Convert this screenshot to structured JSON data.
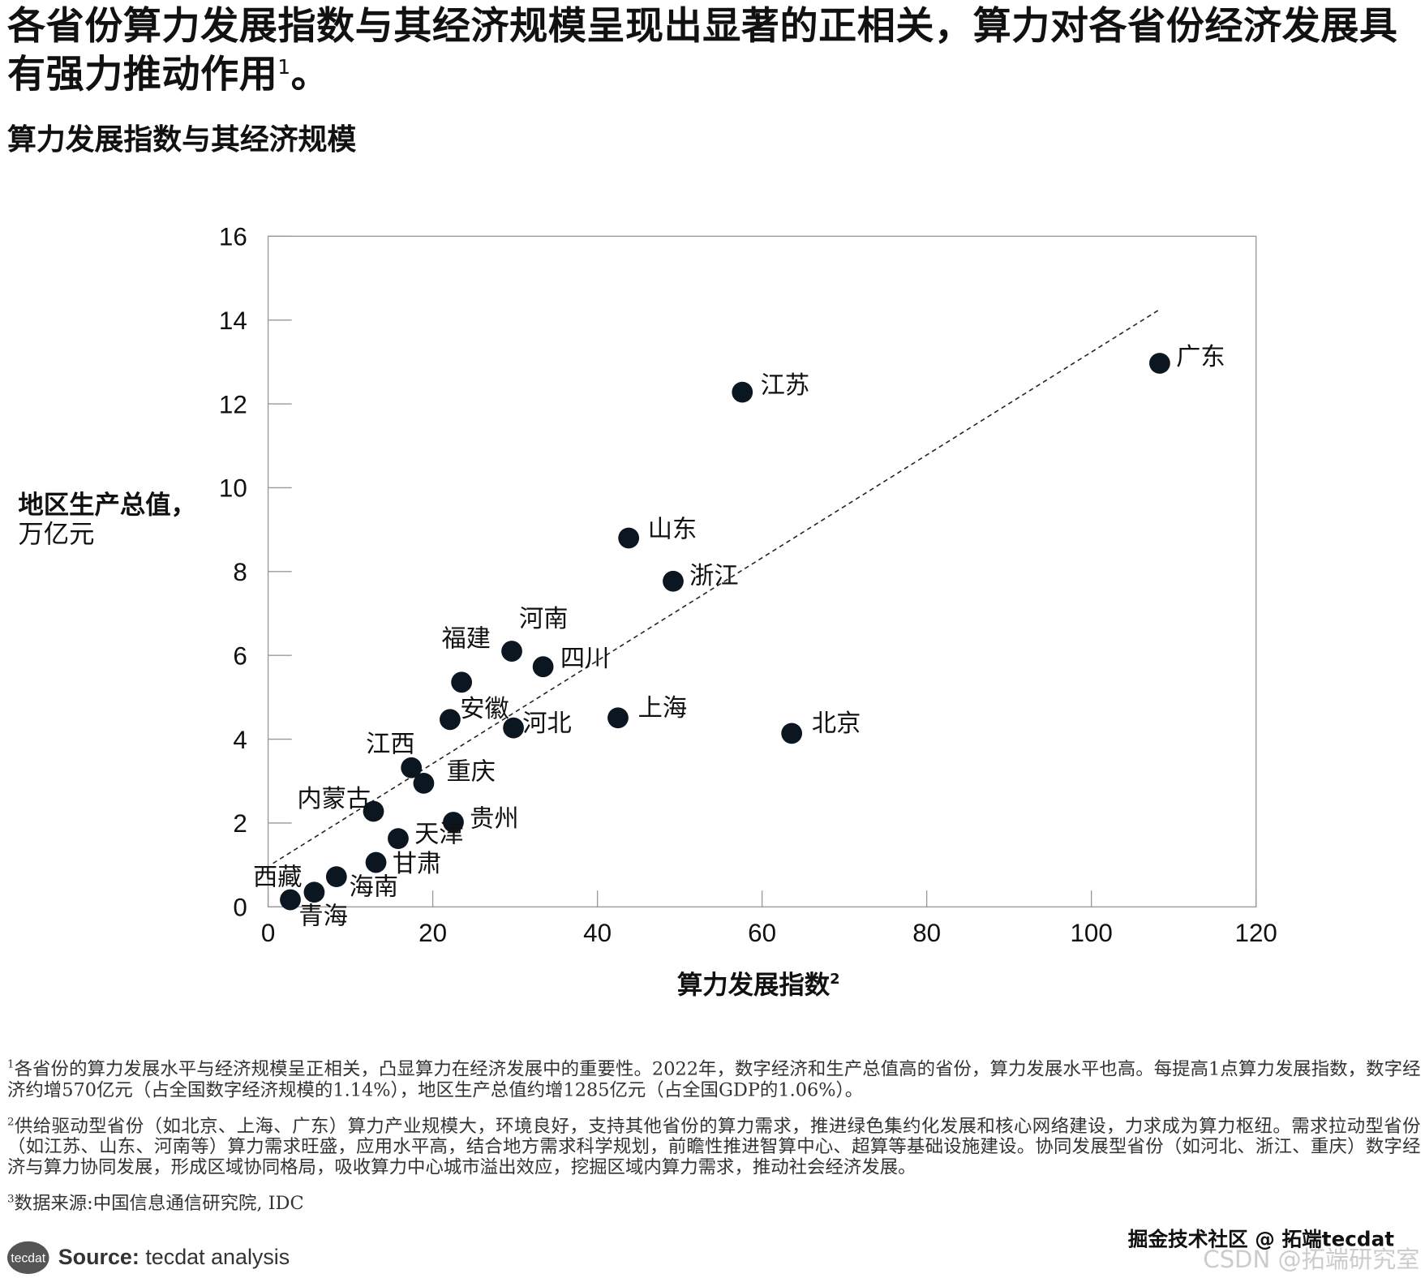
{
  "title": "各省份算力发展指数与其经济规模呈现出显著的正相关，算力对各省份经济发展具有强力推动作用",
  "title_sup": "1",
  "title_end": "。",
  "subtitle": "算力发展指数与其经济规模",
  "chart_data": {
    "type": "scatter",
    "xlabel": "算力发展指数",
    "xlabel_sup": "2",
    "ylabel_line1": "地区生产总值，",
    "ylabel_line2": "万亿元",
    "xlim": [
      0,
      120
    ],
    "ylim": [
      0,
      16
    ],
    "xticks": [
      0,
      20,
      40,
      60,
      80,
      100,
      120
    ],
    "yticks": [
      0,
      2,
      4,
      6,
      8,
      10,
      12,
      14,
      16
    ],
    "grid": false,
    "point_color": "#0b1620",
    "trendline": {
      "style": "dashed",
      "x": [
        0.6,
        108.1
      ],
      "y": [
        1.04,
        14.23
      ]
    },
    "points": [
      {
        "label": "广东",
        "x": 108.3,
        "y": 12.97
      },
      {
        "label": "江苏",
        "x": 57.6,
        "y": 12.28
      },
      {
        "label": "山东",
        "x": 43.8,
        "y": 8.8
      },
      {
        "label": "浙江",
        "x": 49.2,
        "y": 7.77
      },
      {
        "label": "河南",
        "x": 29.6,
        "y": 6.1
      },
      {
        "label": "四川",
        "x": 33.4,
        "y": 5.73
      },
      {
        "label": "福建",
        "x": 23.5,
        "y": 5.36
      },
      {
        "label": "安徽",
        "x": 22.1,
        "y": 4.47
      },
      {
        "label": "河北",
        "x": 29.8,
        "y": 4.27
      },
      {
        "label": "上海",
        "x": 42.5,
        "y": 4.51
      },
      {
        "label": "北京",
        "x": 63.6,
        "y": 4.14
      },
      {
        "label": "江西",
        "x": 17.4,
        "y": 3.32
      },
      {
        "label": "重庆",
        "x": 18.9,
        "y": 2.95
      },
      {
        "label": "内蒙古",
        "x": 12.8,
        "y": 2.28
      },
      {
        "label": "贵州",
        "x": 22.5,
        "y": 2.02
      },
      {
        "label": "天津",
        "x": 15.8,
        "y": 1.63
      },
      {
        "label": "甘肃",
        "x": 13.1,
        "y": 1.06
      },
      {
        "label": "海南",
        "x": 8.3,
        "y": 0.72
      },
      {
        "label": "青海",
        "x": 5.6,
        "y": 0.35
      },
      {
        "label": "西藏",
        "x": 2.7,
        "y": 0.17
      }
    ]
  },
  "footnotes": {
    "n1_sup": "1",
    "n1": "各省份的算力发展水平与经济规模呈正相关，凸显算力在经济发展中的重要性。2022年，数字经济和生产总值高的省份，算力发展水平也高。每提高1点算力发展指数，数字经济约增570亿元（占全国数字经济规模的1.14%），地区生产总值约增1285亿元（占全国GDP的1.06%）。",
    "n2_sup": "2",
    "n2": "供给驱动型省份（如北京、上海、广东）算力产业规模大，环境良好，支持其他省份的算力需求，推进绿色集约化发展和核心网络建设，力求成为算力枢纽。需求拉动型省份（如江苏、山东、河南等）算力需求旺盛，应用水平高，结合地方需求科学规划，前瞻性推进智算中心、超算等基础设施建设。协同发展型省份（如河北、浙江、重庆）数字经济与算力协同发展，形成区域协同格局，吸收算力中心城市溢出效应，挖掘区域内算力需求，推动社会经济发展。",
    "n3_sup": "3",
    "n3": "数据来源:中国信息通信研究院, IDC"
  },
  "source": {
    "logo_text": "tecdat",
    "label": "Source:",
    "text": "tecdat analysis"
  },
  "watermarks": {
    "line1": "掘金技术社区 @ 拓端tecdat",
    "line2": "CSDN @拓端研究室"
  }
}
